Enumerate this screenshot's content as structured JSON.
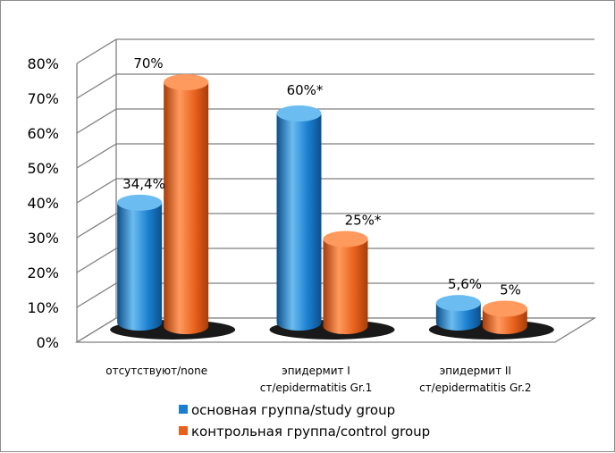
{
  "chart_data": {
    "type": "bar",
    "style": "3d-cylinder",
    "categories": [
      [
        "отсутствуют/none"
      ],
      [
        "эпидермит I",
        "ст/epidermatitis Gr.1"
      ],
      [
        "эпидермит II",
        "ст/epidermatitis Gr.2"
      ]
    ],
    "series": [
      {
        "name": "основная группа/study group",
        "values": [
          34.4,
          60,
          5.6
        ],
        "labels": [
          "34,4%",
          "60%*",
          "5,6%"
        ]
      },
      {
        "name": "контрольная группа/control group",
        "values": [
          70,
          25,
          5
        ],
        "labels": [
          "70%",
          "25%*",
          "5%"
        ]
      }
    ],
    "yticks": [
      "0%",
      "10%",
      "20%",
      "30%",
      "40%",
      "50%",
      "60%",
      "70%",
      "80%"
    ],
    "ylim": [
      0,
      80
    ],
    "grid": true,
    "legend_position": "bottom",
    "colors": {
      "series1": "#1a7fd0",
      "series1_light": "#6bbcf0",
      "series1_dark": "#0d4f8a",
      "series2": "#e8601c",
      "series2_light": "#ff9a5e",
      "series2_dark": "#a63d0a",
      "grid": "#7f7f7f",
      "shadow": "#000000"
    }
  }
}
